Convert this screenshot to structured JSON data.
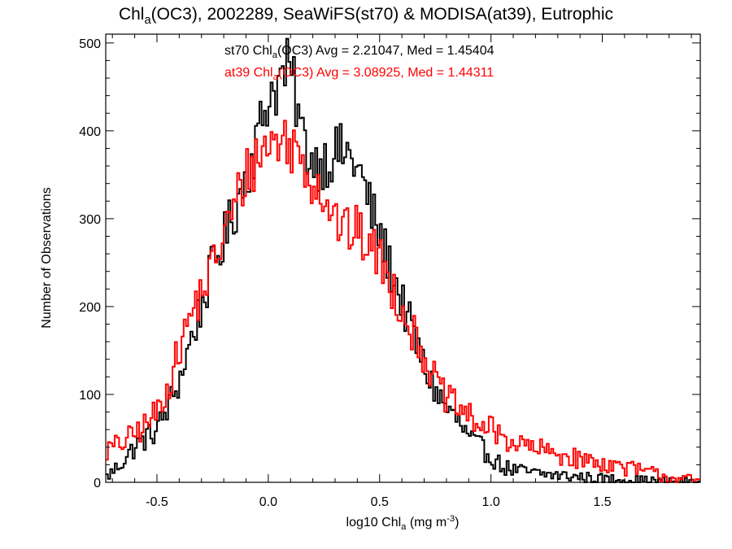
{
  "chart_data": {
    "type": "histogram",
    "title": {
      "pre": "Chl",
      "sub": "a",
      "post": "(OC3), 2002289, SeaWiFS(st70) & MODISA(at39), Eutrophic"
    },
    "xlabel": {
      "pre": "log10 Chl",
      "sub": "a",
      "mid": " (mg m",
      "sup": "-3",
      "post": ")"
    },
    "ylabel": "Number of Observations",
    "xlim": [
      -0.73,
      1.94
    ],
    "ylim": [
      0,
      510
    ],
    "xticks": [
      -0.5,
      0.0,
      0.5,
      1.0,
      1.5
    ],
    "xtick_labels": [
      "-0.5",
      "0.0",
      "0.5",
      "1.0",
      "1.5"
    ],
    "yticks": [
      0,
      100,
      200,
      300,
      400,
      500
    ],
    "ytick_labels": [
      "0",
      "100",
      "200",
      "300",
      "400",
      "500"
    ],
    "bin_width": 0.01,
    "annotations": [
      {
        "pre": "st70 Chl",
        "sub": "a",
        "post": "(OC3) Avg = 2.21047, Med = 1.45404",
        "color": "#000000"
      },
      {
        "pre": "at39 Chl",
        "sub": "a",
        "post": "(OC3) Avg = 3.08925, Med = 1.44311",
        "color": "#ff0000"
      }
    ],
    "series": [
      {
        "color": "#000000",
        "x": [
          -0.73,
          -0.7,
          -0.65,
          -0.6,
          -0.55,
          -0.5,
          -0.45,
          -0.4,
          -0.35,
          -0.3,
          -0.25,
          -0.2,
          -0.15,
          -0.1,
          -0.05,
          0.0,
          0.05,
          0.08,
          0.1,
          0.13,
          0.15,
          0.2,
          0.25,
          0.3,
          0.35,
          0.4,
          0.45,
          0.5,
          0.55,
          0.6,
          0.65,
          0.7,
          0.75,
          0.8,
          0.85,
          0.9,
          0.95,
          1.0,
          1.05,
          1.1,
          1.2,
          1.3,
          1.4,
          1.5,
          1.6,
          1.7,
          1.8,
          1.9,
          1.94
        ],
        "y": [
          5,
          12,
          25,
          40,
          50,
          60,
          85,
          115,
          160,
          200,
          245,
          275,
          310,
          350,
          390,
          440,
          455,
          470,
          465,
          430,
          395,
          365,
          365,
          375,
          375,
          360,
          320,
          280,
          245,
          205,
          170,
          130,
          105,
          85,
          70,
          50,
          40,
          30,
          18,
          14,
          10,
          8,
          6,
          4,
          3,
          2,
          1,
          1,
          0
        ]
      },
      {
        "color": "#ff0000",
        "x": [
          -0.73,
          -0.7,
          -0.65,
          -0.6,
          -0.55,
          -0.5,
          -0.45,
          -0.4,
          -0.35,
          -0.3,
          -0.25,
          -0.2,
          -0.15,
          -0.1,
          -0.05,
          0.0,
          0.05,
          0.1,
          0.15,
          0.2,
          0.25,
          0.3,
          0.35,
          0.4,
          0.45,
          0.5,
          0.55,
          0.6,
          0.65,
          0.7,
          0.75,
          0.8,
          0.85,
          0.9,
          0.95,
          1.0,
          1.05,
          1.1,
          1.2,
          1.3,
          1.4,
          1.5,
          1.6,
          1.7,
          1.8,
          1.9,
          1.94
        ],
        "y": [
          35,
          40,
          45,
          55,
          65,
          80,
          110,
          150,
          190,
          215,
          245,
          280,
          315,
          350,
          370,
          385,
          390,
          385,
          370,
          345,
          330,
          300,
          285,
          285,
          270,
          255,
          225,
          200,
          170,
          145,
          115,
          95,
          85,
          75,
          65,
          60,
          52,
          45,
          38,
          32,
          26,
          22,
          17,
          12,
          6,
          3,
          0
        ]
      }
    ]
  }
}
